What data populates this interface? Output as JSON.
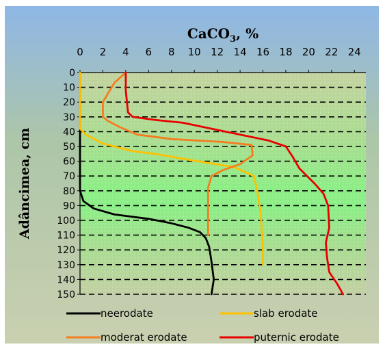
{
  "chart_data": {
    "type": "line",
    "title": "CaCO",
    "title_sub": "3",
    "title_suffix": ", %",
    "ylabel": "Adâncimea, cm",
    "x_axis_position": "top",
    "y_axis_inverted": true,
    "xlim": [
      0,
      25
    ],
    "ylim": [
      150,
      0
    ],
    "x_ticks": [
      0,
      2,
      4,
      6,
      8,
      10,
      12,
      14,
      16,
      18,
      20,
      22,
      24
    ],
    "y_ticks": [
      0,
      10,
      20,
      30,
      40,
      50,
      60,
      70,
      80,
      90,
      100,
      110,
      120,
      130,
      140,
      150
    ],
    "grid": "dashed horizontal",
    "legend_position": "bottom",
    "series": [
      {
        "name": "neerodate",
        "color": "#000000",
        "points": [
          [
            0,
            0
          ],
          [
            0,
            40
          ],
          [
            0,
            80
          ],
          [
            0.3,
            87
          ],
          [
            1.2,
            92
          ],
          [
            3,
            96
          ],
          [
            6,
            99
          ],
          [
            8,
            102
          ],
          [
            9.5,
            105
          ],
          [
            10.5,
            108
          ],
          [
            11,
            112
          ],
          [
            11.3,
            118
          ],
          [
            11.5,
            128
          ],
          [
            11.7,
            140
          ],
          [
            11.5,
            150
          ]
        ]
      },
      {
        "name": "slab erodate",
        "color": "#FFC000",
        "points": [
          [
            0,
            0
          ],
          [
            0,
            38
          ],
          [
            0.5,
            42
          ],
          [
            2,
            48
          ],
          [
            4.5,
            53
          ],
          [
            6.5,
            55
          ],
          [
            9.5,
            59
          ],
          [
            13.5,
            64
          ],
          [
            15.2,
            70
          ],
          [
            15.5,
            80
          ],
          [
            15.8,
            95
          ],
          [
            16,
            120
          ],
          [
            16,
            130
          ]
        ]
      },
      {
        "name": "moderat erodate",
        "color": "#F57C1F",
        "points": [
          [
            4,
            0
          ],
          [
            3,
            7
          ],
          [
            2,
            20
          ],
          [
            2,
            30
          ],
          [
            2.5,
            33
          ],
          [
            3.5,
            37
          ],
          [
            5,
            42
          ],
          [
            8,
            45
          ],
          [
            12.5,
            47
          ],
          [
            15,
            49
          ],
          [
            15.1,
            56
          ],
          [
            14,
            62
          ],
          [
            12.5,
            66
          ],
          [
            11.5,
            70
          ],
          [
            11.2,
            78
          ],
          [
            11.2,
            110
          ]
        ]
      },
      {
        "name": "puternic erodate",
        "color": "#E80000",
        "points": [
          [
            4,
            0
          ],
          [
            4,
            12
          ],
          [
            4.2,
            27
          ],
          [
            4.6,
            30
          ],
          [
            6.5,
            32
          ],
          [
            9,
            34
          ],
          [
            11.5,
            38
          ],
          [
            14,
            42
          ],
          [
            16.5,
            46
          ],
          [
            18,
            50
          ],
          [
            18.6,
            57
          ],
          [
            19.2,
            65
          ],
          [
            20.5,
            75
          ],
          [
            21.3,
            82
          ],
          [
            21.7,
            90
          ],
          [
            21.8,
            105
          ],
          [
            21.5,
            115
          ],
          [
            21.6,
            125
          ],
          [
            21.8,
            135
          ],
          [
            22.5,
            143
          ],
          [
            23,
            150
          ]
        ]
      }
    ]
  }
}
